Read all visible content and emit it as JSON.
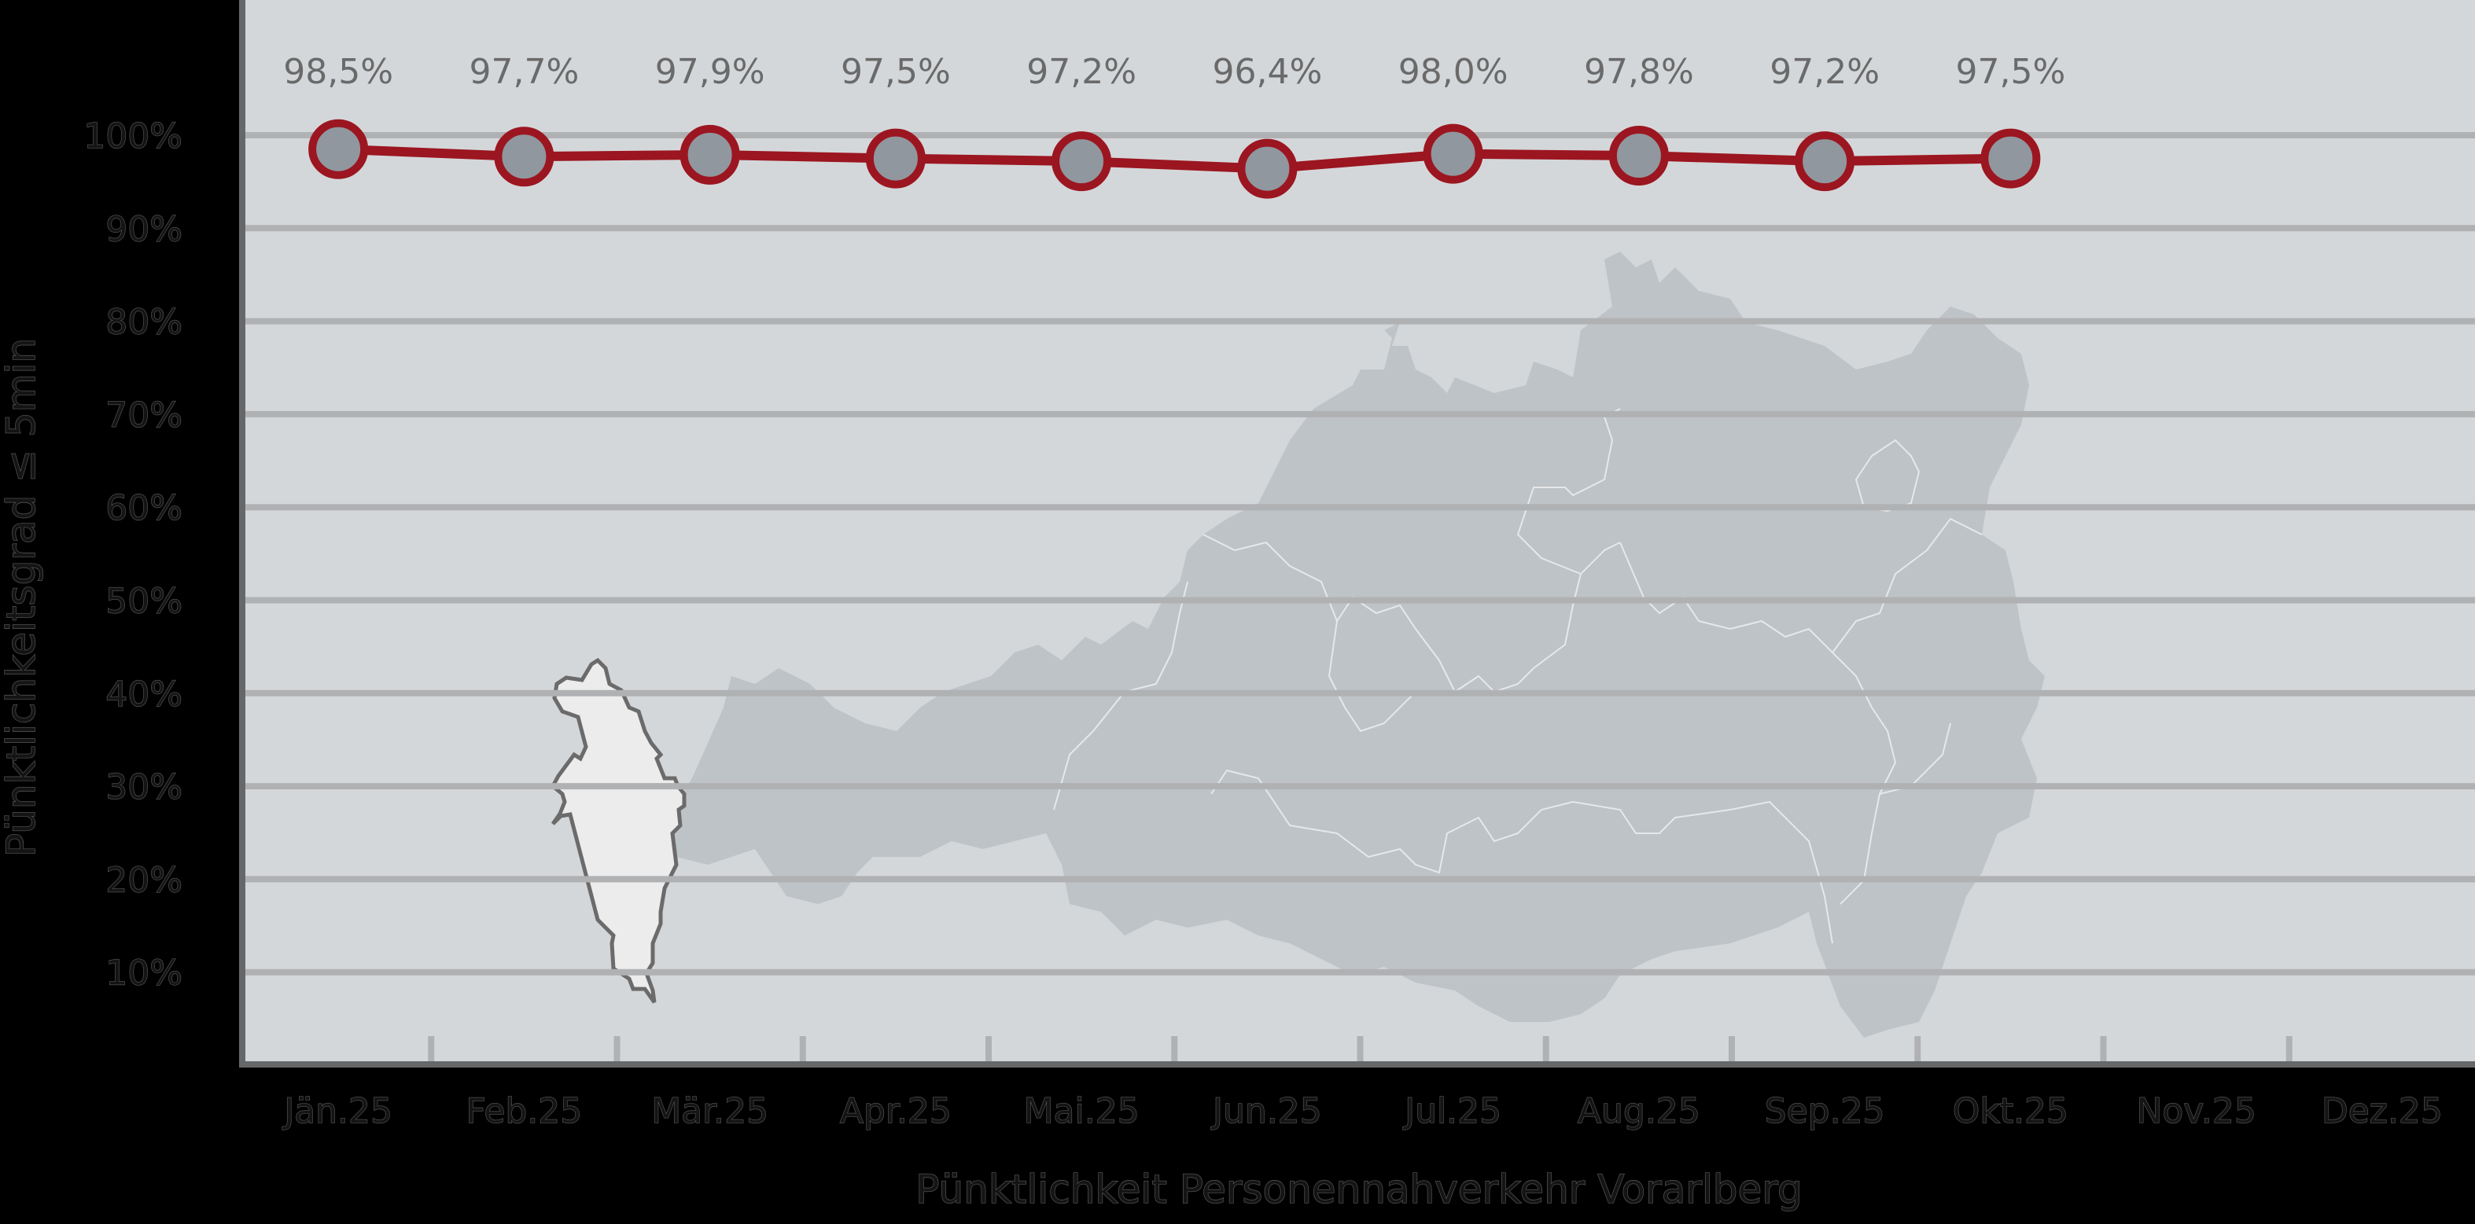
{
  "chart_data": {
    "type": "line",
    "title": "",
    "xlabel": "Pünktlichkeit Personennahverkehr Vorarlberg",
    "ylabel": "Pünktlichkeitsgrad ≤ 5min",
    "categories": [
      "Jän.25",
      "Feb.25",
      "Mär.25",
      "Apr.25",
      "Mai.25",
      "Jun.25",
      "Jul.25",
      "Aug.25",
      "Sep.25",
      "Okt.25",
      "Nov.25",
      "Dez.25"
    ],
    "series": [
      {
        "name": "Pünktlichkeitsgrad",
        "values": [
          98.5,
          97.7,
          97.9,
          97.5,
          97.2,
          96.4,
          98.0,
          97.8,
          97.2,
          97.5,
          null,
          null
        ],
        "data_labels": [
          "98,5%",
          "97,7%",
          "97,9%",
          "97,5%",
          "97,2%",
          "96,4%",
          "98,0%",
          "97,8%",
          "97,2%",
          "97,5%"
        ]
      }
    ],
    "yticks": [
      "10%",
      "20%",
      "30%",
      "40%",
      "50%",
      "60%",
      "70%",
      "80%",
      "90%",
      "100%"
    ],
    "ytick_values": [
      10,
      20,
      30,
      40,
      50,
      60,
      70,
      80,
      90,
      100
    ],
    "ylim": [
      0,
      100
    ],
    "grid": true,
    "legend": "none",
    "background_image": "map of Austria with Vorarlberg highlighted"
  },
  "colors": {
    "page_background": "#000000",
    "plot_background": "#d4d7da",
    "gridline": "#b0b1b3",
    "axis": "#666768",
    "line": "#9b1620",
    "marker_fill": "#90979e",
    "data_label": "#6a6a6a",
    "map_fill": "#bec3c7",
    "highlight_region_fill": "#ececec",
    "highlight_region_stroke": "#6b6b6b"
  }
}
